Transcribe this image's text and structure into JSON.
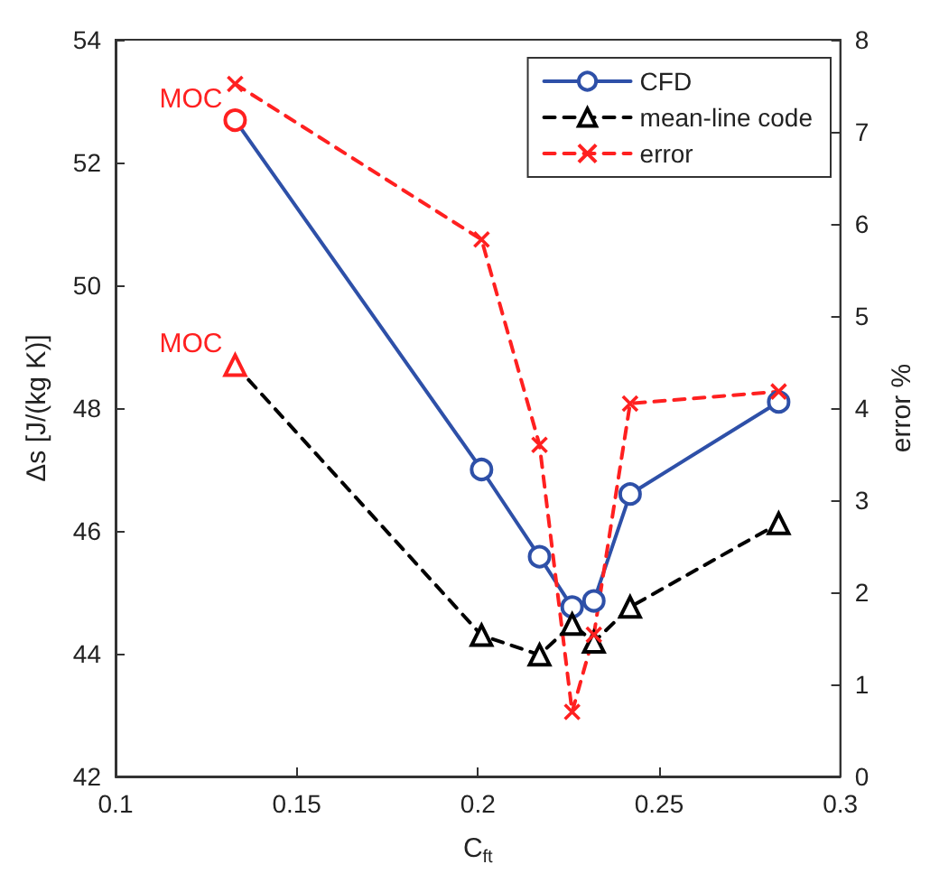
{
  "chart_data": {
    "type": "line",
    "xlabel": "C$_{ft}$",
    "ylabel": "Δs [J/(kg K)]",
    "y2label": "error %",
    "x": [
      0.133,
      0.201,
      0.217,
      0.226,
      0.232,
      0.242,
      0.283
    ],
    "series": [
      {
        "name": "CFD",
        "color": "#2e50a8",
        "colors": [
          "#ff2020",
          "#2e50a8",
          "#2e50a8",
          "#2e50a8",
          "#2e50a8",
          "#2e50a8",
          "#2e50a8"
        ],
        "marker": "circle",
        "line_style": "solid",
        "values": [
          52.69,
          47.0,
          45.58,
          44.76,
          44.86,
          46.6,
          48.1
        ]
      },
      {
        "name": "mean-line code",
        "color": "#000000",
        "colors": [
          "#ff2020",
          "#000000",
          "#000000",
          "#000000",
          "#000000",
          "#000000",
          "#000000"
        ],
        "marker": "triangle",
        "line_style": "dashed",
        "values": [
          48.7,
          44.3,
          43.98,
          44.48,
          44.19,
          44.76,
          46.12
        ]
      },
      {
        "name": "error",
        "color": "#ff2020",
        "marker": "cross",
        "line_style": "dashed",
        "axis": "y2",
        "values": [
          7.52,
          5.83,
          3.6,
          0.7,
          1.54,
          4.05,
          4.18
        ]
      }
    ],
    "xlim": [
      0.1,
      0.3
    ],
    "xticks": [
      0.1,
      0.15,
      0.2,
      0.25,
      0.3
    ],
    "ylim": [
      42,
      54
    ],
    "yticks": [
      42,
      44,
      46,
      48,
      50,
      52,
      54
    ],
    "y2lim": [
      0,
      8
    ],
    "y2ticks": [
      0,
      1,
      2,
      3,
      4,
      5,
      6,
      7,
      8
    ],
    "annotations": [
      {
        "text": "MOC",
        "x": 0.133,
        "y": 52.69
      },
      {
        "text": "MOC",
        "x": 0.133,
        "y": 48.7
      }
    ],
    "legend": "top right",
    "grid": false
  }
}
